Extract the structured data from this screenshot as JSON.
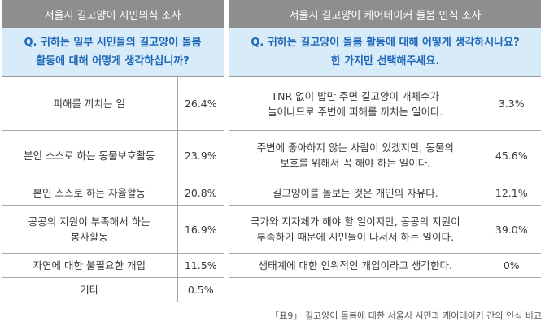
{
  "left": {
    "header": "서울시 길고양이 시민의식 조사",
    "question_line1": "Q. 귀하는 일부 시민들의 길고양이 돌봄",
    "question_line2": "활동에 대해 어떻게 생각하십니까?",
    "rows": [
      {
        "label": "피해를 끼치는 일",
        "pct": "26.4%"
      },
      {
        "label": "본인 스스로 하는 동물보호활동",
        "pct": "23.9%"
      },
      {
        "label": "본인 스스로 하는 자율활동",
        "pct": "20.8%"
      },
      {
        "label_line1": "공공의 지원이 부족해서 하는",
        "label_line2": "봉사활동",
        "pct": "16.9%"
      },
      {
        "label": "자연에 대한 불필요한 개입",
        "pct": "11.5%"
      },
      {
        "label": "기타",
        "pct": "0.5%"
      }
    ]
  },
  "right": {
    "header": "서울시 길고양이 케어테이커 돌봄 인식 조사",
    "question_line1": "Q. 귀하는 길고양이 돌봄 활동에 대해 어떻게 생각하시나요?",
    "question_line2": "한 가지만 선택해주세요.",
    "rows": [
      {
        "label_line1": "TNR 없이 밥만 주면 길고양이 개체수가",
        "label_line2": "늘어나므로 주변에 피해를 끼치는 일이다.",
        "pct": "3.3%"
      },
      {
        "label_line1": "주변에 좋아하지 않는 사람이 있겠지만, 동물의",
        "label_line2": "보호를 위해서 꼭 해야 하는 일이다.",
        "pct": "45.6%"
      },
      {
        "label": "길고양이를 돌보는 것은 개인의 자유다.",
        "pct": "12.1%"
      },
      {
        "label_line1": "국가와 지자체가 해야 할 일이지만, 공공의 지원이",
        "label_line2": "부족하기 때문에 시민들이 나서서 하는 일이다.",
        "pct": "39.0%"
      },
      {
        "label": "생태계에 대한 인위적인 개입이라고 생각한다.",
        "pct": "0%"
      }
    ]
  },
  "caption": "「표9」 길고양이 돌봄에 대한 서울시 시민과 케어테이커 간의 인식 비교"
}
